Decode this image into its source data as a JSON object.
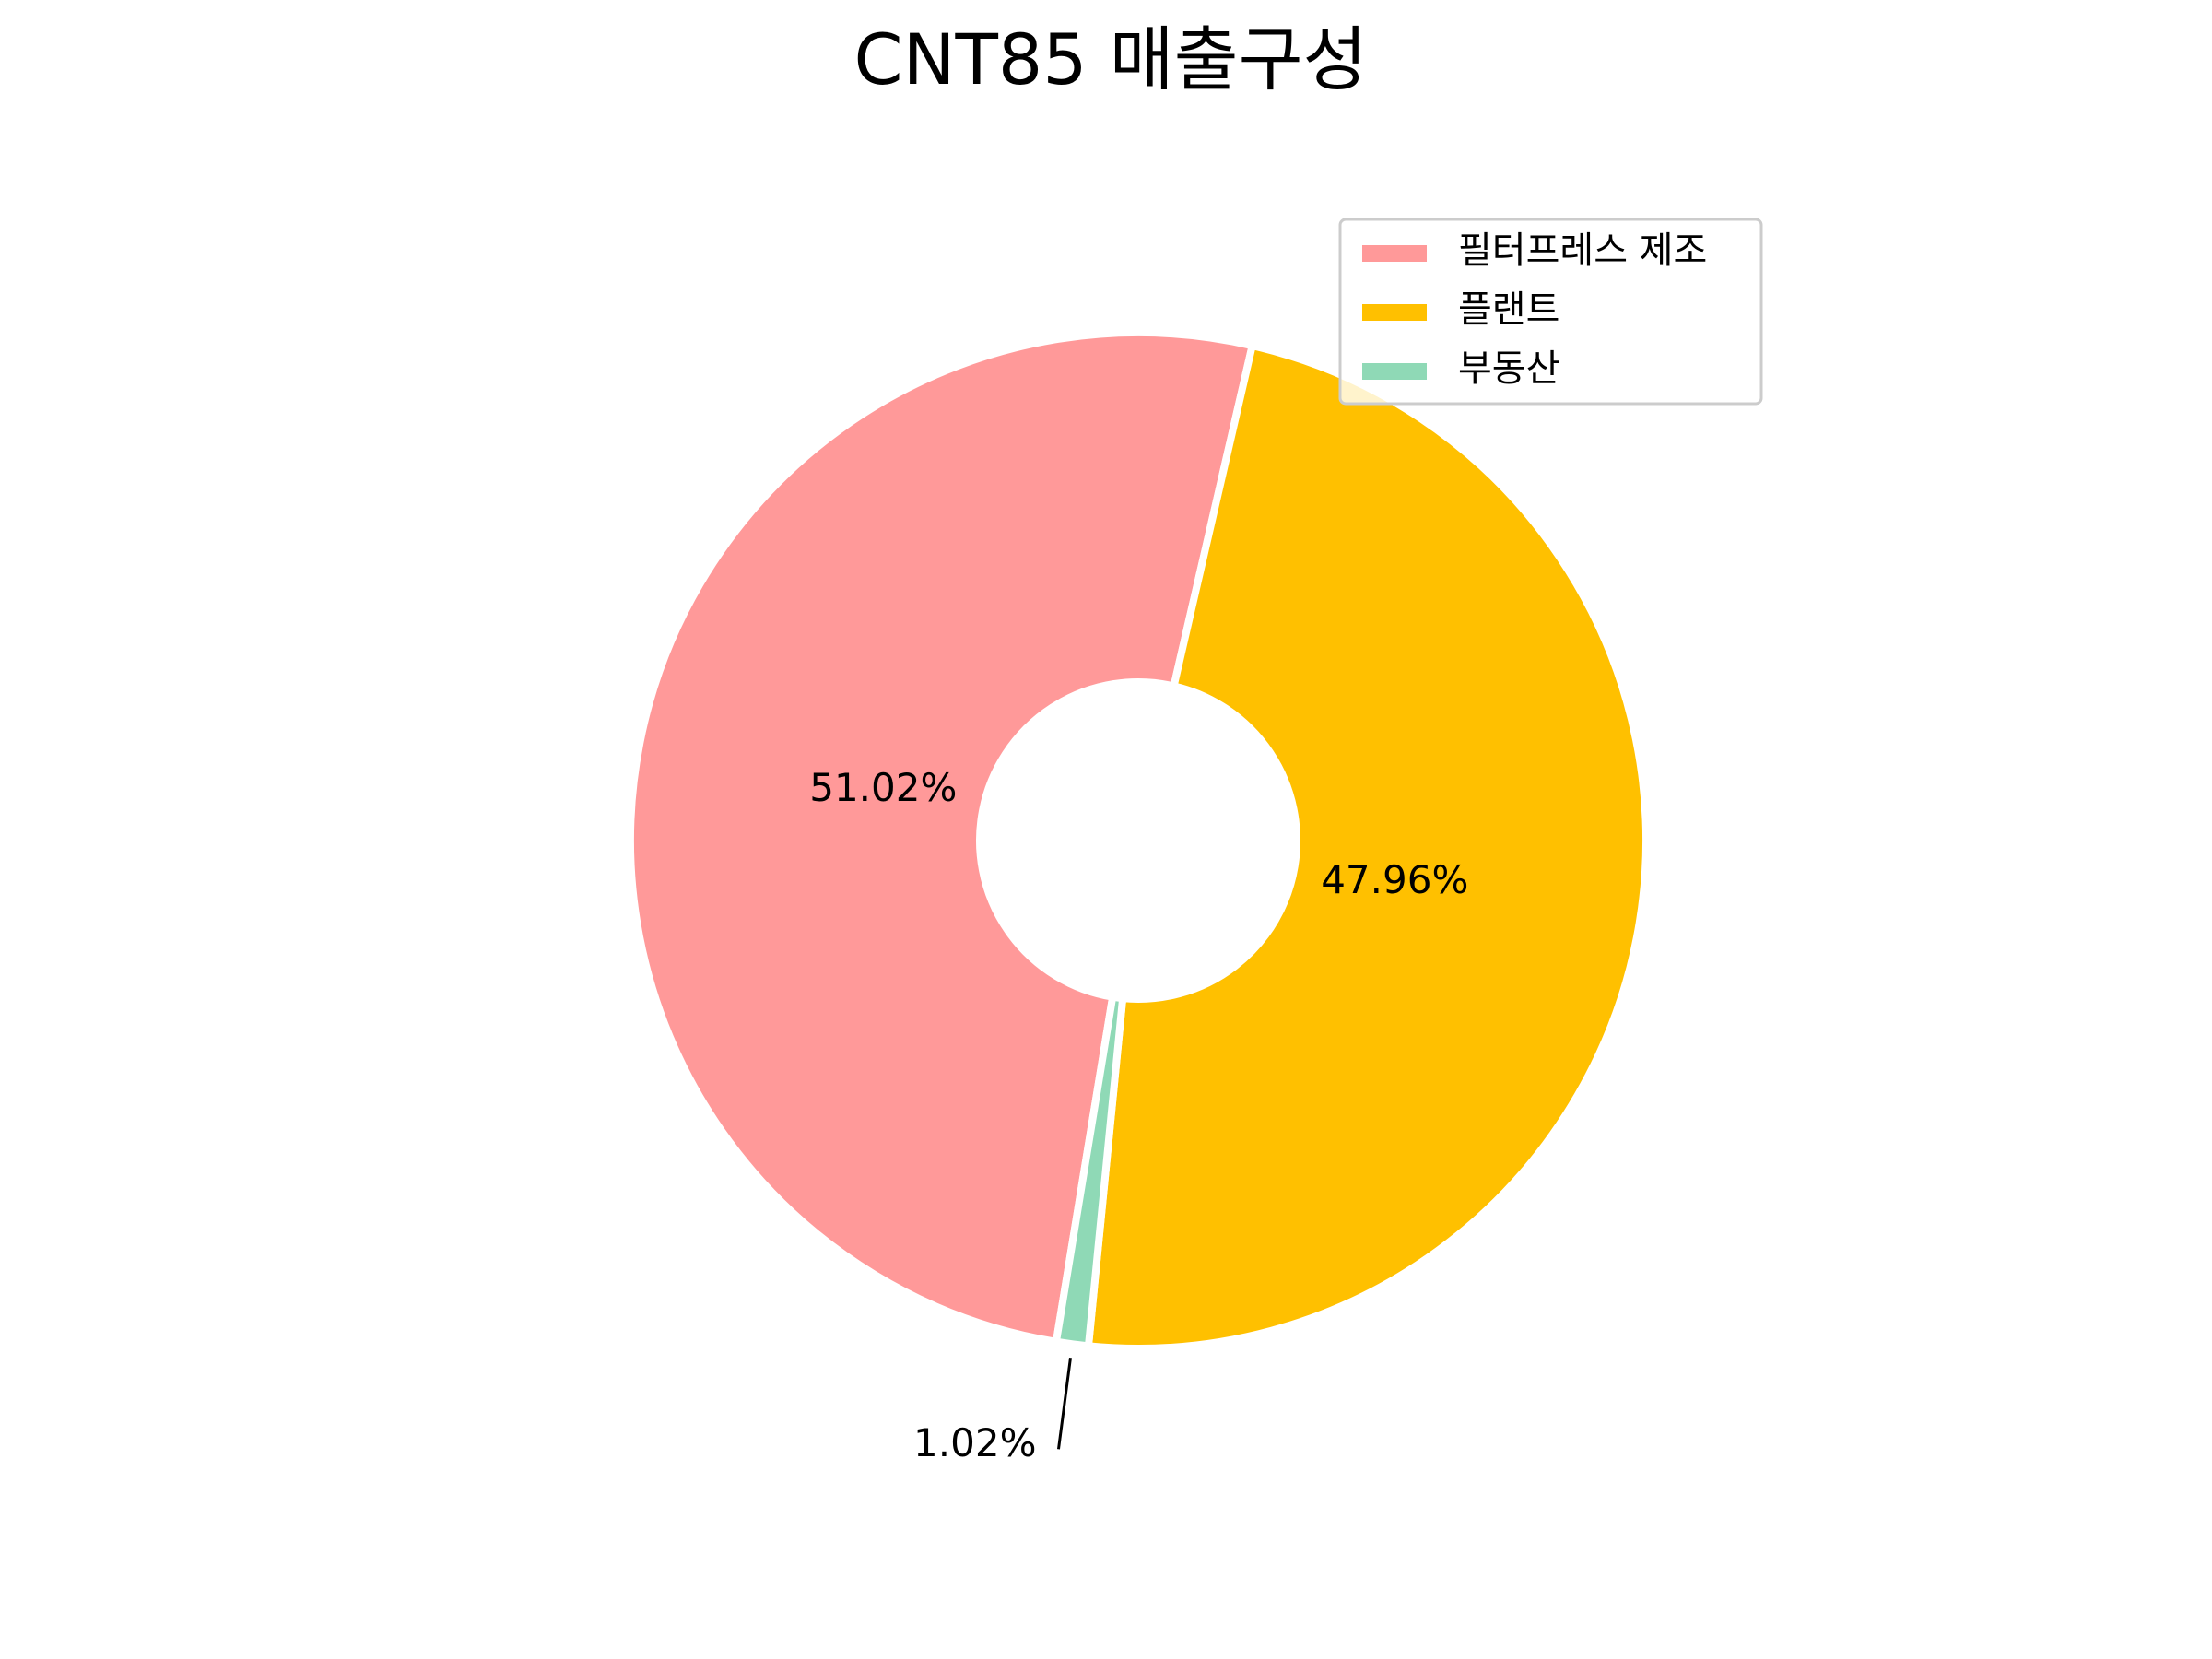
{
  "chart_data": {
    "type": "pie",
    "title": "CNT85 매출구성",
    "categories": [
      "필터프레스 제조",
      "플랜트",
      "부동산"
    ],
    "values": [
      51.02,
      47.96,
      1.02
    ],
    "value_labels": [
      "51.02%",
      "47.96%",
      "1.02%"
    ],
    "colors": [
      "#ff9999",
      "#ffc000",
      "#8fd9b6"
    ],
    "legend": "upper right"
  }
}
